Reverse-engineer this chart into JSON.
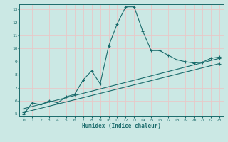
{
  "xlabel": "Humidex (Indice chaleur)",
  "ylabel": "",
  "bg_color": "#cbe8e4",
  "grid_color": "#e8c8c8",
  "line_color": "#1a6b6b",
  "xlim": [
    -0.5,
    23.5
  ],
  "ylim": [
    4.8,
    13.4
  ],
  "xticks": [
    0,
    1,
    2,
    3,
    4,
    5,
    6,
    7,
    8,
    9,
    10,
    11,
    12,
    13,
    14,
    15,
    16,
    17,
    18,
    19,
    20,
    21,
    22,
    23
  ],
  "yticks": [
    5,
    6,
    7,
    8,
    9,
    10,
    11,
    12,
    13
  ],
  "series1_x": [
    0,
    1,
    2,
    3,
    4,
    5,
    6,
    7,
    8,
    9,
    10,
    11,
    12,
    13,
    14,
    15,
    16,
    17,
    18,
    19,
    20,
    21,
    22,
    23
  ],
  "series1_y": [
    4.95,
    5.85,
    5.7,
    6.0,
    5.85,
    6.3,
    6.5,
    7.6,
    8.3,
    7.3,
    10.2,
    11.9,
    13.2,
    13.2,
    11.35,
    9.85,
    9.85,
    9.5,
    9.15,
    9.0,
    8.9,
    8.95,
    9.25,
    9.35
  ],
  "series2_x": [
    0,
    23
  ],
  "series2_y": [
    5.4,
    9.25
  ],
  "series3_x": [
    0,
    23
  ],
  "series3_y": [
    5.1,
    8.85
  ]
}
